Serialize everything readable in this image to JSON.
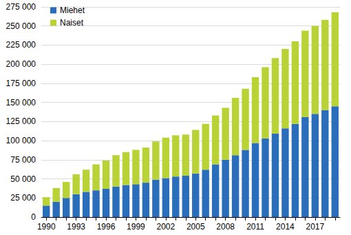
{
  "chart_data": {
    "type": "bar",
    "stacked": true,
    "grid": true,
    "legend": "top-left",
    "categories": [
      "1990",
      null,
      null,
      "1993",
      null,
      null,
      "1996",
      null,
      null,
      "1999",
      null,
      null,
      "2002",
      null,
      null,
      "2005",
      null,
      null,
      "2008",
      null,
      null,
      "2011",
      null,
      null,
      "2014",
      null,
      null,
      "2017",
      null,
      null
    ],
    "series": [
      {
        "name": "Miehet",
        "color": "#2a6ebb",
        "values": [
          15000,
          20000,
          25000,
          30000,
          33000,
          35000,
          37000,
          40000,
          42000,
          43000,
          45000,
          49000,
          51000,
          53000,
          54000,
          57000,
          62000,
          69000,
          75000,
          81000,
          88000,
          97000,
          103000,
          109000,
          116000,
          122000,
          131000,
          135000,
          140000,
          145000
        ]
      },
      {
        "name": "Naiset",
        "color": "#b9d336",
        "values": [
          11000,
          18000,
          21000,
          26000,
          29000,
          34000,
          37000,
          41000,
          43000,
          45000,
          46000,
          50000,
          53000,
          54000,
          54000,
          57000,
          60000,
          64000,
          68000,
          75000,
          80000,
          86000,
          93000,
          99000,
          104000,
          108000,
          113000,
          115000,
          118000,
          123000
        ]
      }
    ],
    "ylim": [
      0,
      275000
    ],
    "yticks": [
      0,
      {
        "value": 25000,
        "label": "25 000"
      },
      {
        "value": 50000,
        "label": "50 000"
      },
      {
        "value": 75000,
        "label": "75 000"
      },
      {
        "value": 100000,
        "label": "100 000"
      },
      {
        "value": 125000,
        "label": "125 000"
      },
      {
        "value": 150000,
        "label": "150 000"
      },
      {
        "value": 175000,
        "label": "175 000"
      },
      {
        "value": 200000,
        "label": "200 000"
      },
      {
        "value": 225000,
        "label": "225 000"
      },
      {
        "value": 250000,
        "label": "250 000"
      },
      {
        "value": 275000,
        "label": "275 000"
      }
    ]
  }
}
